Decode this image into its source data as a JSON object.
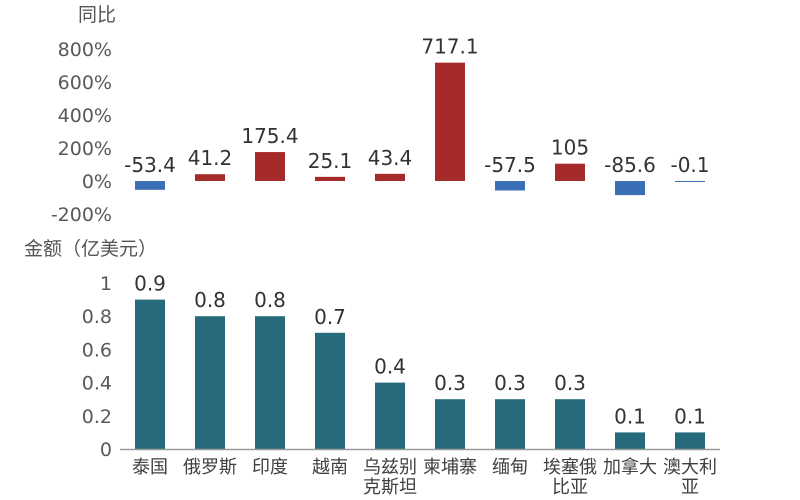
{
  "chart_data": [
    {
      "type": "bar",
      "ylabel": "同比",
      "ylim": [
        -200,
        800
      ],
      "yticks": [
        "800%",
        "600%",
        "400%",
        "200%",
        "0%",
        "-200%"
      ],
      "ytick_values": [
        800,
        600,
        400,
        200,
        0,
        -200
      ],
      "categories": [
        "泰国",
        "俄罗斯",
        "印度",
        "越南",
        "乌兹别克斯坦",
        "柬埔寨",
        "缅甸",
        "埃塞俄比亚",
        "加拿大",
        "澳大利亚"
      ],
      "values": [
        -53.4,
        41.2,
        175.4,
        25.1,
        43.4,
        717.1,
        -57.5,
        105,
        -85.6,
        -0.1
      ],
      "value_labels": [
        "-53.4",
        "41.2",
        "175.4",
        "25.1",
        "43.4",
        "717.1",
        "-57.5",
        "105",
        "-85.6",
        "-0.1"
      ],
      "colors": {
        "positive": "#A52A2A",
        "negative": "#3A6FB5"
      }
    },
    {
      "type": "bar",
      "ylabel": "金额（亿美元）",
      "ylim": [
        0,
        1
      ],
      "yticks": [
        "1",
        "0.8",
        "0.6",
        "0.4",
        "0.2",
        "0"
      ],
      "ytick_values": [
        1,
        0.8,
        0.6,
        0.4,
        0.2,
        0
      ],
      "categories": [
        "泰国",
        "俄罗斯",
        "印度",
        "越南",
        "乌兹别克斯坦",
        "柬埔寨",
        "缅甸",
        "埃塞俄比亚",
        "加拿大",
        "澳大利亚"
      ],
      "category_lines": [
        [
          "泰国"
        ],
        [
          "俄罗斯"
        ],
        [
          "印度"
        ],
        [
          "越南"
        ],
        [
          "乌兹别",
          "克斯坦"
        ],
        [
          "柬埔寨"
        ],
        [
          "缅甸"
        ],
        [
          "埃塞俄",
          "比亚"
        ],
        [
          "加拿大"
        ],
        [
          "澳大利",
          "亚"
        ]
      ],
      "values": [
        0.9,
        0.8,
        0.8,
        0.7,
        0.4,
        0.3,
        0.3,
        0.3,
        0.1,
        0.1
      ],
      "value_labels": [
        "0.9",
        "0.8",
        "0.8",
        "0.7",
        "0.4",
        "0.3",
        "0.3",
        "0.3",
        "0.1",
        "0.1"
      ],
      "colors": {
        "bar": "#276A7C",
        "axis": "#9A9A9A"
      }
    }
  ]
}
